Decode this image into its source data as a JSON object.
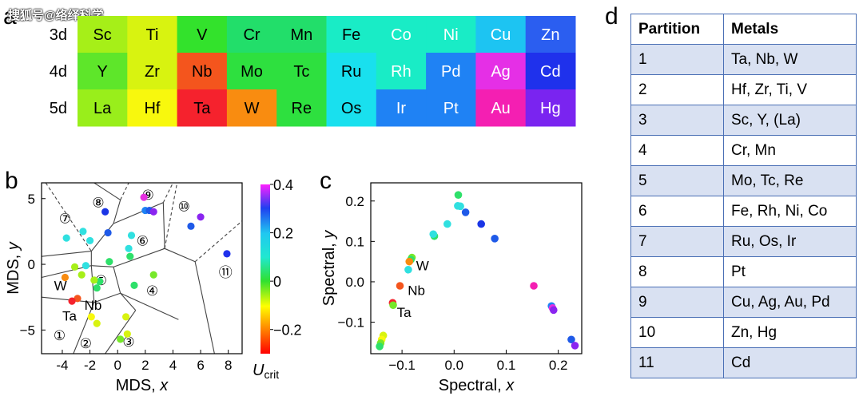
{
  "watermark": "搜狐号@络绎科学",
  "panels": {
    "a": "a",
    "b": "b",
    "c": "c",
    "d": "d"
  },
  "chart_data": [
    {
      "type": "heatmap",
      "panel": "a",
      "rows": [
        "3d",
        "4d",
        "5d"
      ],
      "columns": 10,
      "cells": [
        [
          {
            "el": "Sc",
            "color": "#a6ef18"
          },
          {
            "el": "Ti",
            "color": "#d8f310"
          },
          {
            "el": "V",
            "color": "#33e22c"
          },
          {
            "el": "Cr",
            "color": "#22de6a"
          },
          {
            "el": "Mn",
            "color": "#22de6a"
          },
          {
            "el": "Fe",
            "color": "#19ecc6"
          },
          {
            "el": "Co",
            "color": "#19ecc6"
          },
          {
            "el": "Ni",
            "color": "#19ecc6"
          },
          {
            "el": "Cu",
            "color": "#1dc4f2"
          },
          {
            "el": "Zn",
            "color": "#2b5ef0"
          }
        ],
        [
          {
            "el": "Y",
            "color": "#5ee62a"
          },
          {
            "el": "Zr",
            "color": "#d8f310"
          },
          {
            "el": "Nb",
            "color": "#f4551d"
          },
          {
            "el": "Mo",
            "color": "#2ee03f"
          },
          {
            "el": "Tc",
            "color": "#2ee03f"
          },
          {
            "el": "Ru",
            "color": "#19e0ee"
          },
          {
            "el": "Rh",
            "color": "#19ecc6"
          },
          {
            "el": "Pd",
            "color": "#1f82f4"
          },
          {
            "el": "Ag",
            "color": "#e52fe6"
          },
          {
            "el": "Cd",
            "color": "#1f31ec"
          }
        ],
        [
          {
            "el": "La",
            "color": "#99ee1b"
          },
          {
            "el": "Hf",
            "color": "#f8f80d"
          },
          {
            "el": "Ta",
            "color": "#f5222d"
          },
          {
            "el": "W",
            "color": "#f98c10"
          },
          {
            "el": "Re",
            "color": "#2ee03f"
          },
          {
            "el": "Os",
            "color": "#19e0ee"
          },
          {
            "el": "Ir",
            "color": "#1f82f4"
          },
          {
            "el": "Pt",
            "color": "#1f82f4"
          },
          {
            "el": "Au",
            "color": "#f41fb2"
          },
          {
            "el": "Hg",
            "color": "#7a24f0"
          }
        ]
      ]
    },
    {
      "type": "scatter",
      "panel": "b",
      "xlabel": "MDS, x",
      "ylabel": "MDS, y",
      "xlim": [
        -5.5,
        9.0
      ],
      "ylim": [
        -6.8,
        6.2
      ],
      "xticks": [
        -4,
        -2,
        0,
        2,
        4,
        6,
        8
      ],
      "yticks": [
        -5,
        0,
        5
      ],
      "colorbar": {
        "label_main": "U",
        "label_sub": "crit",
        "range": [
          -0.3,
          0.4
        ],
        "ticks": [
          0.4,
          0.2,
          0.0,
          -0.2
        ],
        "tick_labels": [
          "0.4",
          "0.2",
          "0",
          "−0.2"
        ]
      },
      "points": [
        {
          "x": -3.7,
          "y": 2.0,
          "c": "#30e0e0"
        },
        {
          "x": -2.5,
          "y": 2.5,
          "c": "#30e0e0"
        },
        {
          "x": -2.0,
          "y": 1.8,
          "c": "#30e0e0"
        },
        {
          "x": -0.9,
          "y": 4.0,
          "c": "#1a35e6"
        },
        {
          "x": -0.7,
          "y": 2.4,
          "c": "#1f5ae8"
        },
        {
          "x": 1.0,
          "y": 2.2,
          "c": "#30e0e0"
        },
        {
          "x": 0.8,
          "y": 1.2,
          "c": "#30e0e0"
        },
        {
          "x": 0.9,
          "y": 0.6,
          "c": "#2ee06a"
        },
        {
          "x": 1.9,
          "y": 5.1,
          "c": "#e530e0"
        },
        {
          "x": 2.0,
          "y": 4.1,
          "c": "#1f82f4"
        },
        {
          "x": 2.3,
          "y": 4.1,
          "c": "#1f5ae8"
        },
        {
          "x": 2.6,
          "y": 4.0,
          "c": "#8a24f0"
        },
        {
          "x": 6.0,
          "y": 3.6,
          "c": "#8a24f0"
        },
        {
          "x": 5.3,
          "y": 2.9,
          "c": "#1f5ae8"
        },
        {
          "x": 7.9,
          "y": 0.8,
          "c": "#1f31ec"
        },
        {
          "x": -2.3,
          "y": -0.1,
          "c": "#30e0e0"
        },
        {
          "x": -1.3,
          "y": -1.3,
          "c": "#2ee06a"
        },
        {
          "x": -0.6,
          "y": 0.2,
          "c": "#2ee06a"
        },
        {
          "x": -3.1,
          "y": -0.2,
          "c": "#a6ef18"
        },
        {
          "x": -2.6,
          "y": -0.8,
          "c": "#a6ef18"
        },
        {
          "x": -1.7,
          "y": -1.2,
          "c": "#a6ef18"
        },
        {
          "x": -1.5,
          "y": -1.8,
          "c": "#2ee06a"
        },
        {
          "x": 1.2,
          "y": -1.6,
          "c": "#2ee06a"
        },
        {
          "x": 2.6,
          "y": -0.8,
          "c": "#76e82a"
        },
        {
          "x": -3.8,
          "y": -1.0,
          "c": "#f98c10"
        },
        {
          "x": -2.9,
          "y": -2.6,
          "c": "#f4551d"
        },
        {
          "x": -3.3,
          "y": -2.8,
          "c": "#f5222d"
        },
        {
          "x": -1.9,
          "y": -4.0,
          "c": "#f8f80d"
        },
        {
          "x": -1.5,
          "y": -4.5,
          "c": "#d8f310"
        },
        {
          "x": 0.6,
          "y": -4.0,
          "c": "#d8f310"
        },
        {
          "x": 0.7,
          "y": -5.3,
          "c": "#d8f310"
        },
        {
          "x": 0.2,
          "y": -5.7,
          "c": "#76e82a"
        }
      ],
      "labels": [
        {
          "text": "W",
          "x": -4.6,
          "y": -1.6
        },
        {
          "text": "Nb",
          "x": -2.4,
          "y": -3.1
        },
        {
          "text": "Ta",
          "x": -4.0,
          "y": -3.9
        }
      ],
      "regions": [
        {
          "text": "①",
          "x": -4.2,
          "y": -5.4
        },
        {
          "text": "②",
          "x": -2.3,
          "y": -6.0
        },
        {
          "text": "③",
          "x": 0.8,
          "y": -5.9
        },
        {
          "text": "④",
          "x": 2.5,
          "y": -2.0
        },
        {
          "text": "⑤",
          "x": -1.2,
          "y": -1.2
        },
        {
          "text": "⑥",
          "x": 1.8,
          "y": 1.8
        },
        {
          "text": "⑦",
          "x": -3.8,
          "y": 3.5
        },
        {
          "text": "⑧",
          "x": -1.4,
          "y": 4.7
        },
        {
          "text": "⑨",
          "x": 2.2,
          "y": 5.3
        },
        {
          "text": "⑩",
          "x": 4.8,
          "y": 4.4
        },
        {
          "text": "⑪",
          "x": 7.8,
          "y": -0.6
        }
      ]
    },
    {
      "type": "scatter",
      "panel": "c",
      "xlabel": "Spectral, x",
      "ylabel": "Spectral, y",
      "xlim": [
        -0.16,
        0.245
      ],
      "ylim": [
        -0.178,
        0.245
      ],
      "xticks": [
        -0.1,
        0.0,
        0.1,
        0.2
      ],
      "xtick_labels": [
        "−0.1",
        "0.0",
        "0.1",
        "0.2"
      ],
      "yticks": [
        0.2,
        0.1,
        0.0,
        -0.1
      ],
      "ytick_labels": [
        "0.2",
        "0.1",
        "0.0",
        "−0.1"
      ],
      "points": [
        {
          "x": 0.008,
          "y": 0.215,
          "c": "#2ee06a"
        },
        {
          "x": 0.007,
          "y": 0.188,
          "c": "#30e0e0"
        },
        {
          "x": 0.012,
          "y": 0.187,
          "c": "#30e0e0"
        },
        {
          "x": 0.022,
          "y": 0.172,
          "c": "#1f5ae8"
        },
        {
          "x": 0.052,
          "y": 0.143,
          "c": "#1a35e6"
        },
        {
          "x": 0.078,
          "y": 0.107,
          "c": "#1f5ae8"
        },
        {
          "x": -0.013,
          "y": 0.143,
          "c": "#30e0e0"
        },
        {
          "x": -0.038,
          "y": 0.113,
          "c": "#2ee06a"
        },
        {
          "x": -0.04,
          "y": 0.118,
          "c": "#30e0e0"
        },
        {
          "x": -0.081,
          "y": 0.06,
          "c": "#76e82a"
        },
        {
          "x": -0.083,
          "y": 0.055,
          "c": "#2ee06a"
        },
        {
          "x": -0.086,
          "y": 0.05,
          "c": "#f98c10"
        },
        {
          "x": -0.088,
          "y": 0.03,
          "c": "#30e0e0"
        },
        {
          "x": -0.104,
          "y": -0.01,
          "c": "#f4551d"
        },
        {
          "x": -0.118,
          "y": -0.052,
          "c": "#f5222d"
        },
        {
          "x": -0.117,
          "y": -0.058,
          "c": "#76e82a"
        },
        {
          "x": -0.136,
          "y": -0.133,
          "c": "#d8f310"
        },
        {
          "x": -0.139,
          "y": -0.143,
          "c": "#f8f80d"
        },
        {
          "x": -0.141,
          "y": -0.152,
          "c": "#76e82a"
        },
        {
          "x": -0.143,
          "y": -0.16,
          "c": "#2ee06a"
        },
        {
          "x": 0.153,
          "y": -0.01,
          "c": "#f41fb2"
        },
        {
          "x": 0.187,
          "y": -0.06,
          "c": "#1f82f4"
        },
        {
          "x": 0.189,
          "y": -0.065,
          "c": "#e530e0"
        },
        {
          "x": 0.191,
          "y": -0.07,
          "c": "#8a24f0"
        },
        {
          "x": 0.225,
          "y": -0.143,
          "c": "#1f5ae8"
        },
        {
          "x": 0.232,
          "y": -0.158,
          "c": "#8a24f0"
        }
      ],
      "labels": [
        {
          "text": "W",
          "x": -0.073,
          "y": 0.04
        },
        {
          "text": "Nb",
          "x": -0.089,
          "y": -0.021
        },
        {
          "text": "Ta",
          "x": -0.11,
          "y": -0.075
        }
      ]
    },
    {
      "type": "table",
      "panel": "d",
      "columns": [
        "Partition",
        "Metals"
      ],
      "rows": [
        [
          "1",
          "Ta, Nb, W"
        ],
        [
          "2",
          "Hf, Zr, Ti, V"
        ],
        [
          "3",
          "Sc, Y, (La)"
        ],
        [
          "4",
          "Cr, Mn"
        ],
        [
          "5",
          "Mo, Tc, Re"
        ],
        [
          "6",
          "Fe, Rh, Ni, Co"
        ],
        [
          "7",
          "Ru, Os, Ir"
        ],
        [
          "8",
          "Pt"
        ],
        [
          "9",
          "Cu, Ag, Au, Pd"
        ],
        [
          "10",
          "Zn, Hg"
        ],
        [
          "11",
          "Cd"
        ]
      ]
    }
  ]
}
